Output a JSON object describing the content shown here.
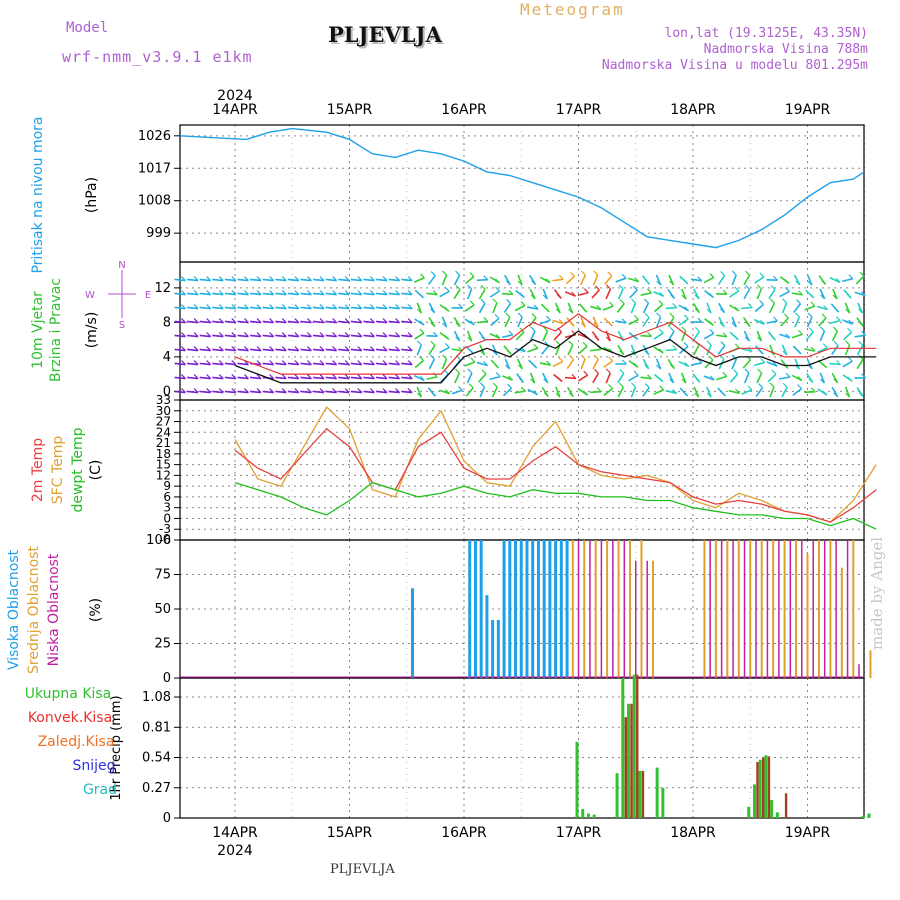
{
  "header": {
    "model_label": "Model",
    "model_name": "wrf-nmm_v3.9.1 e1km",
    "station": "PLJEVLJA",
    "meteogram": "Meteogram",
    "coords": "lon,lat (19.3125E, 43.35N)",
    "elevation": "Nadmorska Visina 788m",
    "elevation_model": "Nadmorska Visina u modelu 801.295m"
  },
  "footer": {
    "station": "PLJEVLJA",
    "credit": "made by Angel"
  },
  "colors": {
    "pressure": "#1ea0e8",
    "wind_speed": "#111111",
    "wind_gust": "#e83030",
    "temp_2m": "#e84040",
    "temp_sfc": "#e0a030",
    "dewpoint": "#20c020",
    "cloud_high": "#1ea0e8",
    "cloud_mid": "#e0a030",
    "cloud_low": "#c020a0",
    "precip_total": "#30c030",
    "precip_conv": "#e83030",
    "precip_freezing": "#f07020",
    "snow": "#3030e0",
    "hail": "#20c0c0",
    "frame": "#000000",
    "grid": "#888888"
  },
  "chart_data": [
    {
      "id": "pressure",
      "type": "line",
      "ylabel": "Pritisak na nivou mora",
      "unit": "(hPa)",
      "yticks": [
        999,
        1008,
        1017,
        1026
      ],
      "ylim": [
        991,
        1029
      ],
      "x_days": [
        0.0,
        0.1,
        0.3,
        0.5,
        0.8,
        1.0,
        1.2,
        1.4,
        1.6,
        1.8,
        2.0,
        2.2,
        2.4,
        2.6,
        2.8,
        3.0,
        3.2,
        3.4,
        3.6,
        3.8,
        4.0,
        4.2,
        4.4,
        4.6,
        4.8,
        5.0,
        5.2,
        5.4,
        5.6
      ],
      "values": [
        1026,
        1025,
        1027,
        1028,
        1027,
        1025,
        1021,
        1020,
        1022,
        1021,
        1019,
        1016,
        1015,
        1013,
        1011,
        1009,
        1006,
        1002,
        998,
        997,
        996,
        995,
        997,
        1000,
        1004,
        1009,
        1013,
        1014,
        1016
      ]
    },
    {
      "id": "wind",
      "type": "line",
      "ylabel_line1": "10m Vjetar",
      "ylabel_line2": "Brzina i Pravac",
      "unit": "(m/s)",
      "compass": {
        "n": "N",
        "s": "S",
        "e": "E",
        "w": "W"
      },
      "yticks": [
        0,
        4,
        8,
        12
      ],
      "ylim": [
        -1,
        15
      ],
      "x_days": [
        0.0,
        0.2,
        0.4,
        0.6,
        0.8,
        1.0,
        1.2,
        1.4,
        1.6,
        1.8,
        2.0,
        2.2,
        2.4,
        2.6,
        2.8,
        3.0,
        3.2,
        3.4,
        3.6,
        3.8,
        4.0,
        4.2,
        4.4,
        4.6,
        4.8,
        5.0,
        5.2,
        5.4,
        5.6
      ],
      "series": [
        {
          "name": "speed",
          "values": [
            3,
            2,
            1,
            1,
            1,
            1,
            1,
            1,
            1,
            1,
            4,
            5,
            4,
            6,
            5,
            7,
            5,
            4,
            5,
            6,
            4,
            3,
            4,
            4,
            3,
            3,
            4,
            4,
            4
          ]
        },
        {
          "name": "gust",
          "values": [
            4,
            3,
            2,
            2,
            2,
            2,
            2,
            2,
            2,
            2,
            5,
            6,
            6,
            8,
            7,
            9,
            7,
            6,
            7,
            8,
            6,
            4,
            5,
            5,
            4,
            4,
            5,
            5,
            5
          ]
        }
      ]
    },
    {
      "id": "temperature",
      "type": "line",
      "ylabel_line1": "2m Temp",
      "ylabel_line2": "SFC Temp",
      "ylabel_line3": "dewpt Temp",
      "unit": "(C)",
      "yticks": [
        -6,
        -3,
        0,
        3,
        6,
        9,
        12,
        15,
        18,
        21,
        24,
        27,
        30,
        33
      ],
      "ylim": [
        -6,
        33
      ],
      "x_days": [
        0.0,
        0.2,
        0.4,
        0.6,
        0.8,
        1.0,
        1.2,
        1.4,
        1.6,
        1.8,
        2.0,
        2.2,
        2.4,
        2.6,
        2.8,
        3.0,
        3.2,
        3.4,
        3.6,
        3.8,
        4.0,
        4.2,
        4.4,
        4.6,
        4.8,
        5.0,
        5.2,
        5.4,
        5.6
      ],
      "series": [
        {
          "name": "2m",
          "values": [
            19,
            14,
            11,
            18,
            25,
            20,
            10,
            8,
            20,
            24,
            14,
            11,
            11,
            16,
            20,
            15,
            13,
            12,
            11,
            10,
            6,
            4,
            5,
            4,
            2,
            1,
            -1,
            3,
            8
          ]
        },
        {
          "name": "sfc",
          "values": [
            22,
            11,
            9,
            20,
            31,
            25,
            8,
            6,
            22,
            30,
            16,
            10,
            9,
            20,
            27,
            15,
            12,
            11,
            12,
            10,
            5,
            3,
            7,
            5,
            2,
            1,
            -1,
            5,
            15
          ]
        },
        {
          "name": "dewpt",
          "values": [
            10,
            8,
            6,
            3,
            1,
            5,
            10,
            8,
            6,
            7,
            9,
            7,
            6,
            8,
            7,
            7,
            6,
            6,
            5,
            5,
            3,
            2,
            1,
            1,
            0,
            0,
            -2,
            0,
            -3
          ]
        }
      ]
    },
    {
      "id": "cloud",
      "type": "bar",
      "ylabel_line1": "Visoka Oblacnost",
      "ylabel_line2": "Srednja Oblacnost",
      "ylabel_line3": "Niska Oblacnost",
      "unit": "(%)",
      "yticks": [
        0,
        25,
        50,
        75,
        100
      ],
      "ylim": [
        0,
        100
      ],
      "series": [
        {
          "name": "high",
          "x_days": [
            2.05,
            2.1,
            2.15,
            2.2,
            2.25,
            2.3,
            2.35,
            2.4,
            2.45,
            2.5,
            2.55,
            2.6,
            2.65,
            2.7,
            2.75,
            2.8,
            2.85,
            2.9
          ],
          "values": [
            100,
            100,
            100,
            60,
            42,
            42,
            100,
            100,
            100,
            100,
            100,
            100,
            100,
            100,
            100,
            100,
            100,
            100
          ]
        },
        {
          "name": "mid",
          "x_days": [
            2.95,
            3.05,
            3.15,
            3.25,
            3.35,
            3.45,
            3.55,
            3.65,
            4.1,
            4.2,
            4.3,
            4.4,
            4.5,
            4.6,
            4.7,
            4.8,
            4.9,
            5.0,
            5.1,
            5.2,
            5.3,
            5.4,
            5.55
          ],
          "values": [
            100,
            100,
            100,
            100,
            100,
            100,
            100,
            85,
            100,
            100,
            100,
            100,
            100,
            100,
            100,
            100,
            100,
            90,
            100,
            100,
            80,
            100,
            20
          ]
        },
        {
          "name": "low",
          "x_days": [
            3.0,
            3.1,
            3.2,
            3.3,
            3.4,
            3.5,
            3.6,
            4.15,
            4.25,
            4.35,
            4.45,
            4.55,
            4.65,
            4.75,
            4.85,
            4.95,
            5.05,
            5.15,
            5.25,
            5.35,
            5.45
          ],
          "values": [
            100,
            100,
            100,
            100,
            100,
            85,
            85,
            100,
            100,
            100,
            100,
            100,
            100,
            100,
            100,
            100,
            100,
            100,
            100,
            100,
            10
          ]
        },
        {
          "name": "high_single",
          "x_days": [
            1.55
          ],
          "values": [
            65
          ]
        }
      ]
    },
    {
      "id": "precip",
      "type": "bar",
      "ylabel": "1hr Precip (mm)",
      "legend": [
        "Ukupna Kisa",
        "Konvek.Kisa",
        "Zaledj.Kisa",
        "Snijeg",
        "Grad"
      ],
      "yticks": [
        0,
        0.27,
        0.54,
        0.81,
        1.08
      ],
      "ylim": [
        0,
        1.25
      ],
      "series": [
        {
          "name": "total",
          "x_days": [
            3.0,
            3.05,
            3.1,
            3.15,
            3.35,
            3.4,
            3.45,
            3.5,
            3.55,
            3.7,
            3.75,
            4.5,
            4.55,
            4.6,
            4.65,
            4.7,
            4.75,
            5.5,
            5.55
          ],
          "values": [
            0.68,
            0.08,
            0.04,
            0.03,
            0.4,
            1.25,
            1.02,
            1.28,
            0.42,
            0.45,
            0.27,
            0.1,
            0.3,
            0.52,
            0.56,
            0.16,
            0.05,
            0.02,
            0.04
          ]
        },
        {
          "name": "conv",
          "x_days": [
            3.4,
            3.45,
            3.5,
            3.55,
            4.55,
            4.6,
            4.65,
            4.8
          ],
          "values": [
            0.9,
            1.02,
            1.28,
            0.42,
            0.5,
            0.54,
            0.55,
            0.22
          ]
        }
      ]
    }
  ],
  "time_axis": {
    "top_year": "2024",
    "bottom_year": "2024",
    "days": [
      "14APR",
      "15APR",
      "16APR",
      "17APR",
      "18APR",
      "19APR"
    ]
  }
}
